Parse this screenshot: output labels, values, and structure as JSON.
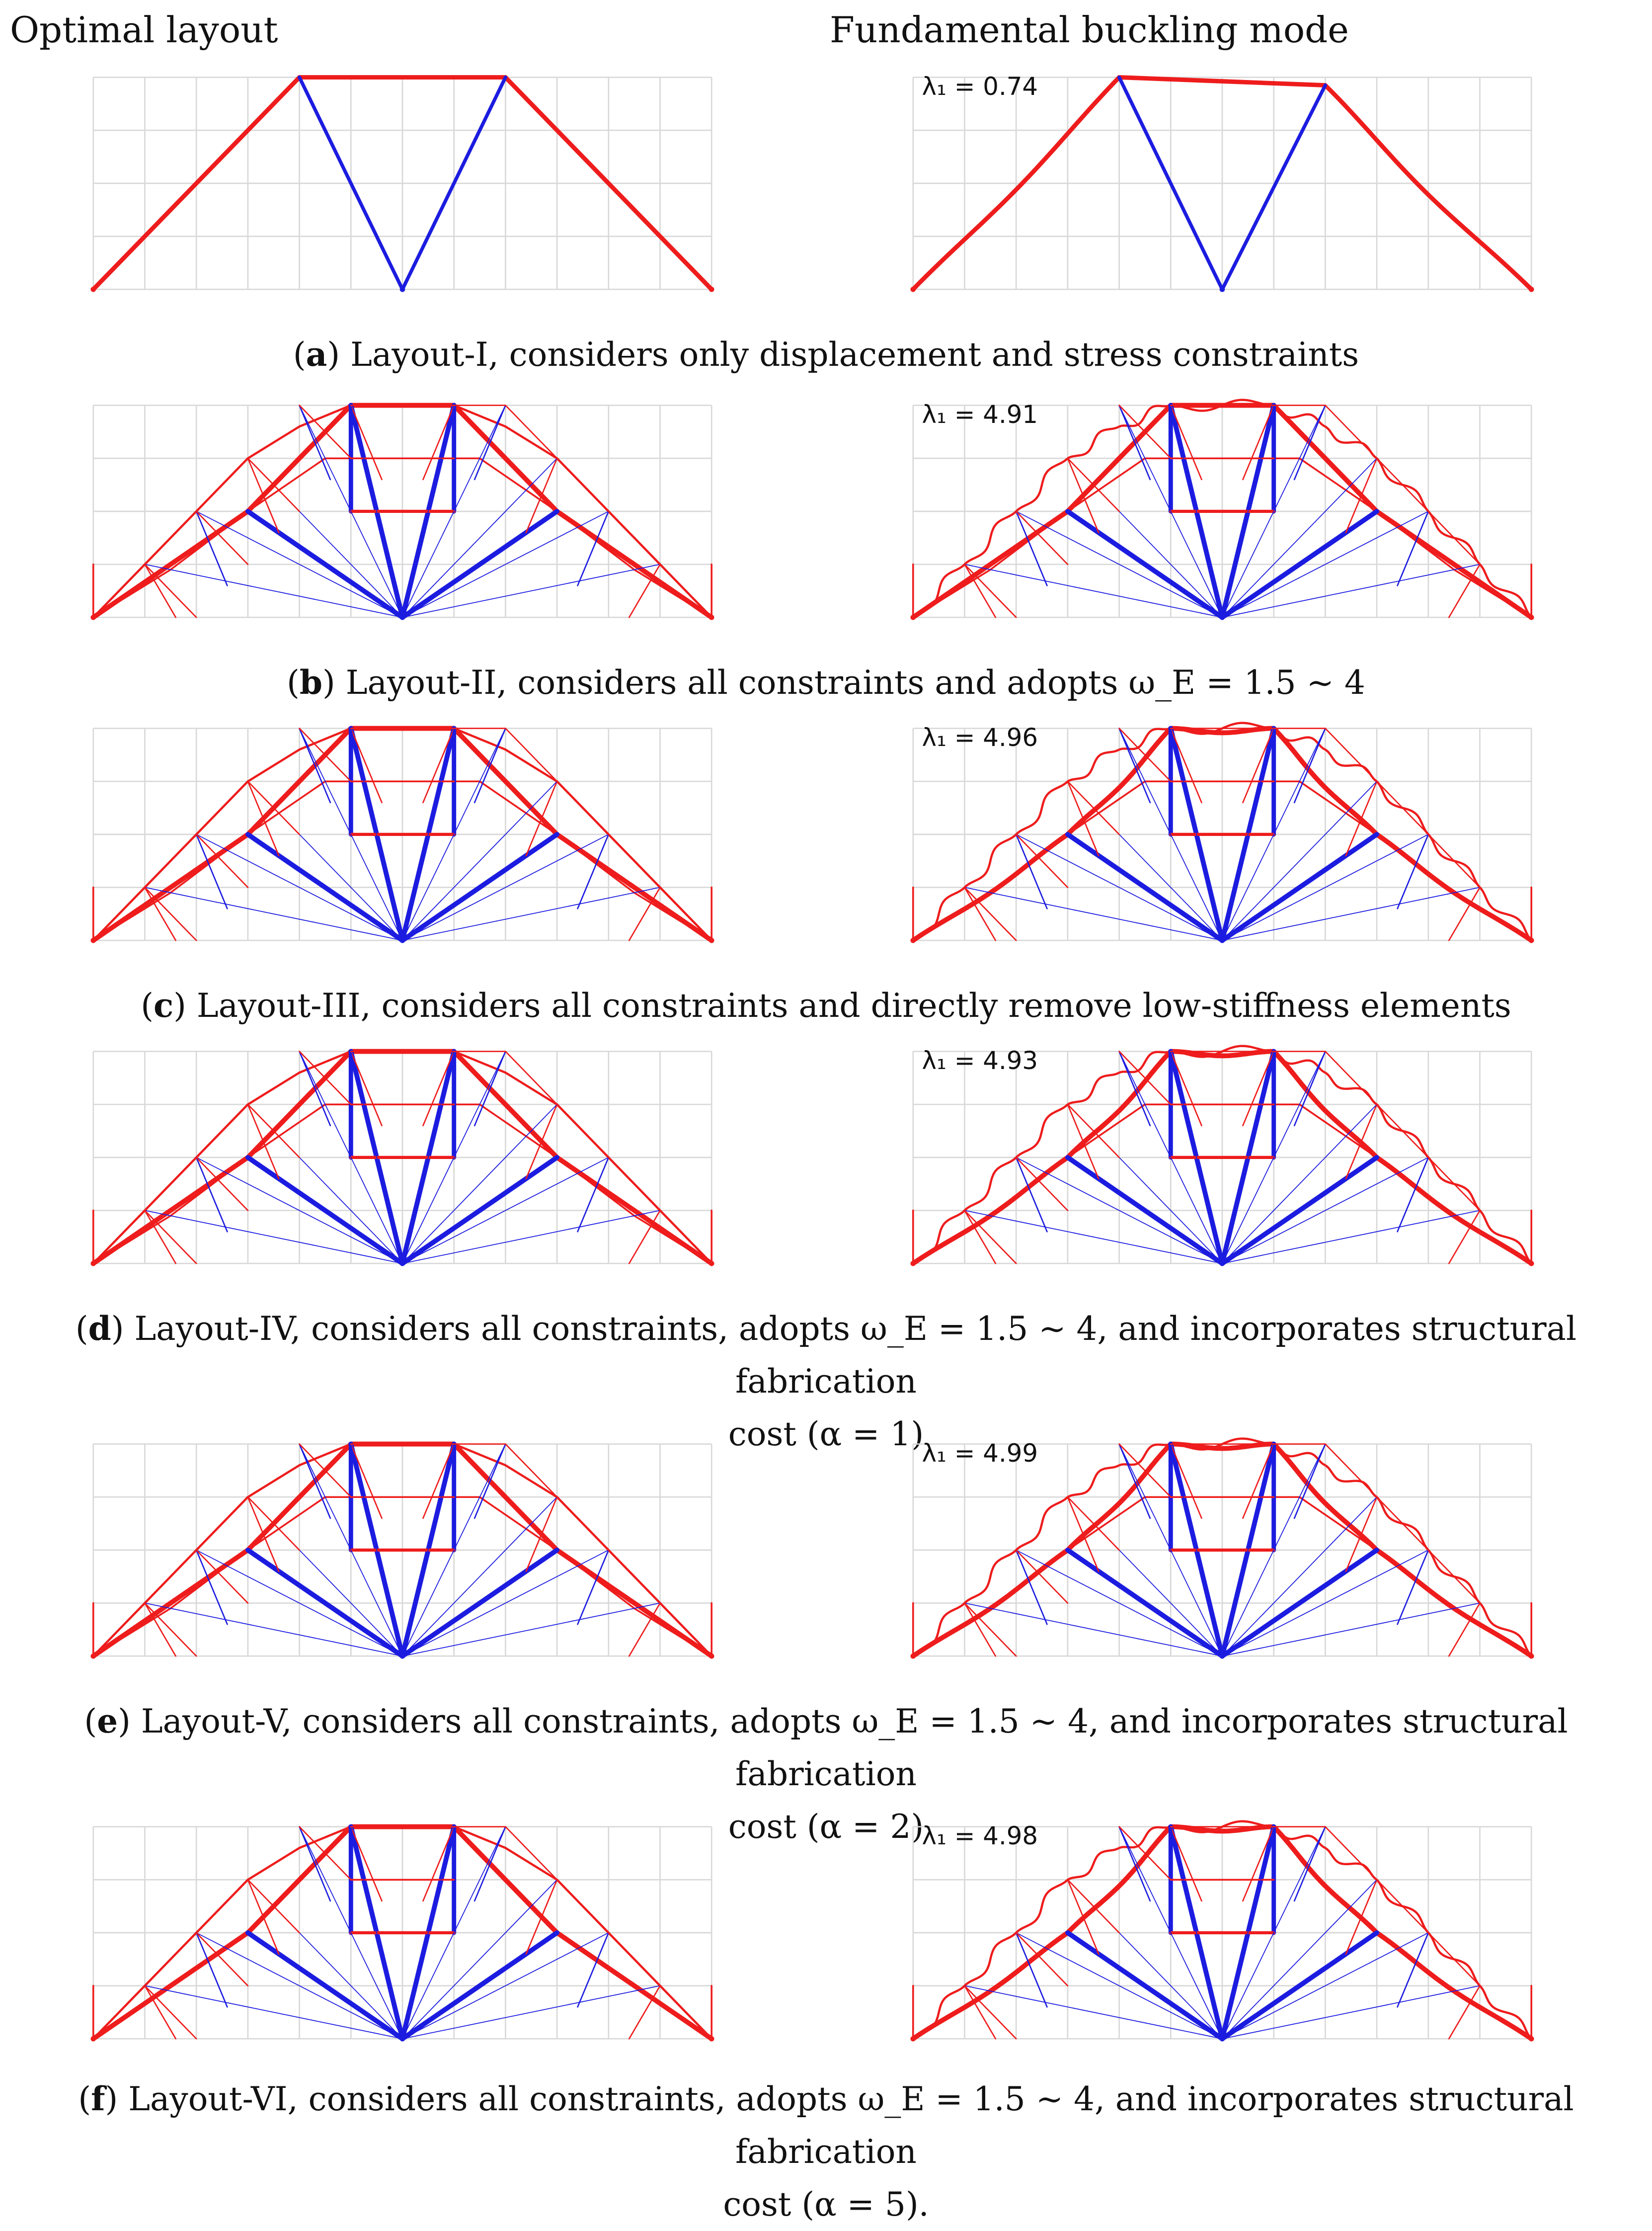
{
  "headers": {
    "left": "Optimal layout",
    "right": "Fundamental buckling mode"
  },
  "colors": {
    "compression": "#ee1c1c",
    "tension": "#1c1ce0",
    "grid": "#d8d8d8",
    "background": "#ffffff"
  },
  "icons": {
    "support-node": "red dot"
  },
  "rows": [
    {
      "id": "a",
      "tag": "a",
      "eigenvalue": "λ₁ = 0.74",
      "caption": ") Layout-I, considers only displacement and stress constraints",
      "caption2": ""
    },
    {
      "id": "b",
      "tag": "b",
      "eigenvalue": "λ₁ = 4.91",
      "caption": ") Layout-II, considers all constraints and adopts ω_E = 1.5 ∼ 4",
      "caption2": ""
    },
    {
      "id": "c",
      "tag": "c",
      "eigenvalue": "λ₁ = 4.96",
      "caption": ") Layout-III, considers all constraints and directly remove low-stiffness elements",
      "caption2": ""
    },
    {
      "id": "d",
      "tag": "d",
      "eigenvalue": "λ₁ = 4.93",
      "caption": ") Layout-IV, considers all constraints, adopts ω_E = 1.5 ∼ 4, and incorporates structural fabrication",
      "caption2": "cost (α = 1)"
    },
    {
      "id": "e",
      "tag": "e",
      "eigenvalue": "λ₁ = 4.99",
      "caption": ") Layout-V, considers all constraints, adopts ω_E = 1.5 ∼ 4, and incorporates structural fabrication",
      "caption2": "cost (α = 2)"
    },
    {
      "id": "f",
      "tag": "f",
      "eigenvalue": "λ₁ = 4.98",
      "caption": ") Layout-VI, considers all constraints, adopts ω_E = 1.5 ∼ 4, and incorporates structural fabrication",
      "caption2": "cost (α = 5)."
    }
  ]
}
